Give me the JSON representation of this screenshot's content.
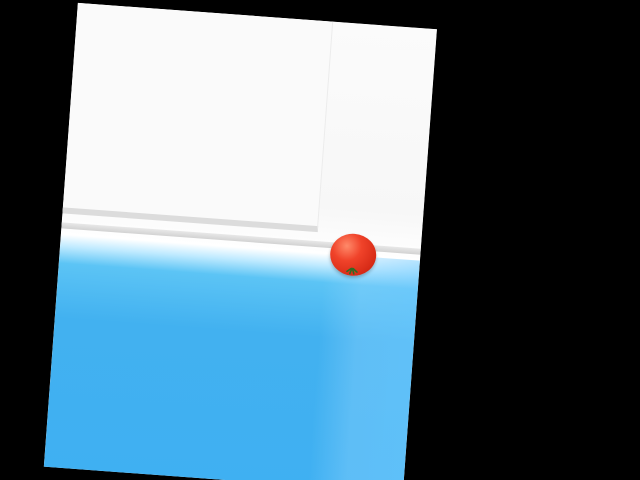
{
  "scene": {
    "background_color": "#000000",
    "panel_color": "#ffffff",
    "water_color": "#42b1f0",
    "tomato_color": "#e23a22",
    "tomato_label": "",
    "icons": {
      "tomato": "tomato-icon",
      "stem": "stem-icon"
    }
  }
}
